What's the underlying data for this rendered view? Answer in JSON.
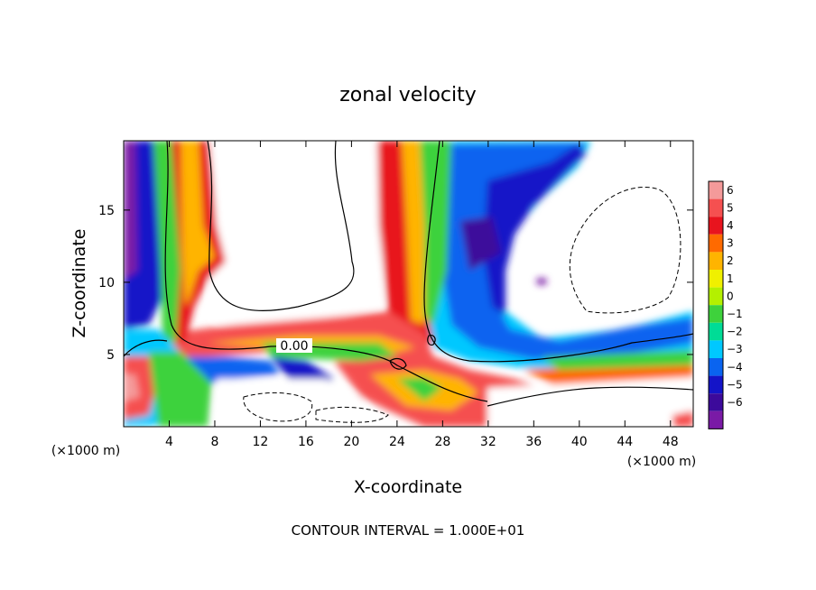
{
  "chart_data": {
    "type": "heatmap",
    "title": "zonal velocity",
    "xlabel": "X-coordinate",
    "ylabel": "Z-coordinate",
    "x_unit_left": "(×1000 m)",
    "x_unit_right": "(×1000 m)",
    "footer": "CONTOUR INTERVAL = 1.000E+01",
    "contour_label": "0.00",
    "xlim": [
      0,
      50
    ],
    "ylim": [
      0,
      19.8
    ],
    "x_ticks": [
      "4",
      "8",
      "12",
      "16",
      "20",
      "24",
      "28",
      "32",
      "36",
      "40",
      "44",
      "48"
    ],
    "y_ticks": [
      "5",
      "10",
      "15"
    ],
    "colorbar": {
      "levels": [
        "6",
        "5",
        "4",
        "3",
        "2",
        "1",
        "0",
        "−1",
        "−2",
        "−3",
        "−4",
        "−5",
        "−6"
      ],
      "colors": [
        "#f49a9a",
        "#f55050",
        "#e8141e",
        "#ff6a00",
        "#ffb400",
        "#f0f000",
        "#b4f000",
        "#3ed23c",
        "#00dc96",
        "#00c8ff",
        "#0a64f0",
        "#1414c8",
        "#3c0a9b",
        "#7a1aa6"
      ]
    },
    "grid": false
  }
}
